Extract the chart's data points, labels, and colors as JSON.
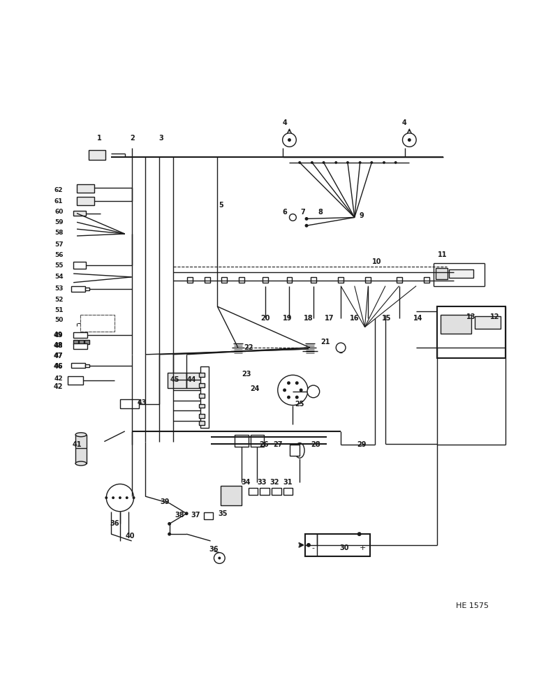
{
  "bg_color": "#ffffff",
  "lc": "#1a1a1a",
  "figsize": [
    7.72,
    10.0
  ],
  "dpi": 100,
  "watermark": "HE 1575"
}
